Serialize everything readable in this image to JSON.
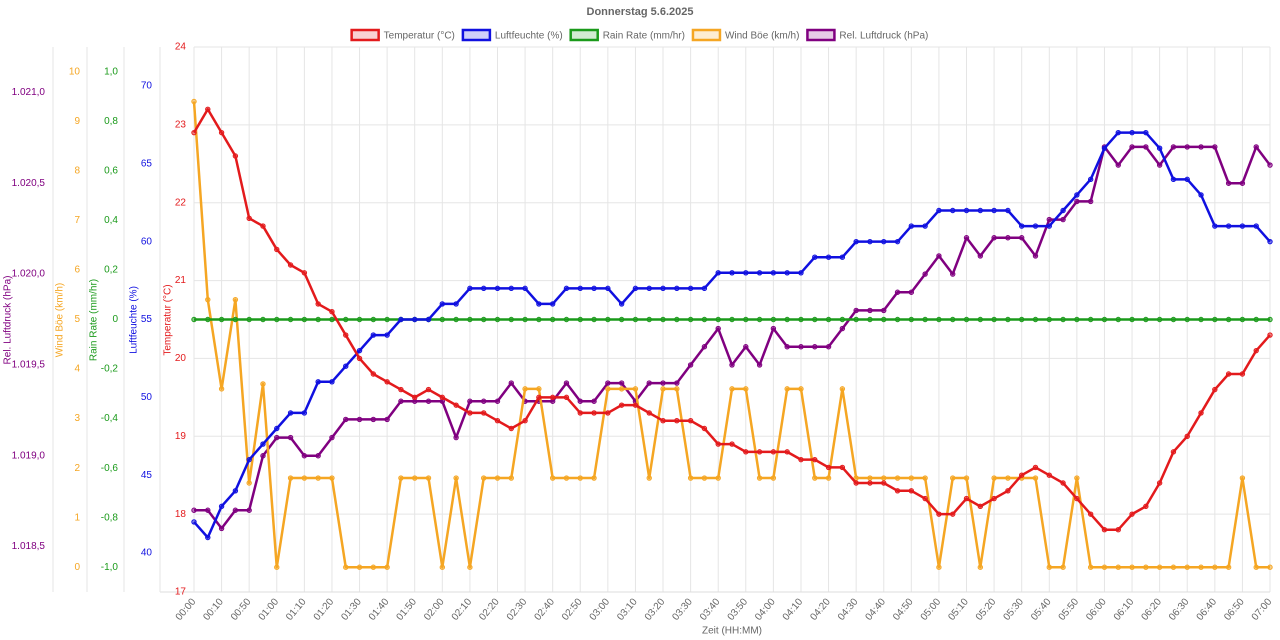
{
  "chart_data": {
    "type": "line",
    "title": "Donnerstag 5.6.2025",
    "x_label": "Zeit (HH:MM)",
    "grid": true,
    "categories": [
      "00:00",
      null,
      "00:10",
      null,
      "00:50",
      null,
      "01:00",
      null,
      "01:10",
      null,
      "01:20",
      null,
      "01:30",
      null,
      "01:40",
      null,
      "01:50",
      null,
      "02:00",
      null,
      "02:10",
      null,
      "02:20",
      null,
      "02:30",
      null,
      "02:40",
      null,
      "02:50",
      null,
      "03:00",
      null,
      "03:10",
      null,
      "03:20",
      null,
      "03:30",
      null,
      "03:40",
      null,
      "03:50",
      null,
      "04:00",
      null,
      "04:10",
      null,
      "04:20",
      null,
      "04:30",
      null,
      "04:40",
      null,
      "04:50",
      null,
      "05:00",
      null,
      "05:10",
      null,
      "05:20",
      null,
      "05:30",
      null,
      "05:40",
      null,
      "05:50",
      null,
      "06:00",
      null,
      "06:10",
      null,
      "06:20",
      null,
      "06:30",
      null,
      "06:40",
      null,
      "06:50",
      null,
      "07:00"
    ],
    "series": [
      {
        "name": "Temperatur (°C)",
        "color": "#e31a1c",
        "axis_title": "Temperatur (°C)",
        "ylim": [
          17,
          24
        ],
        "yticks": [
          17,
          18,
          19,
          20,
          21,
          22,
          23,
          24
        ],
        "values": [
          22.9,
          23.2,
          22.9,
          22.6,
          21.8,
          21.7,
          21.4,
          21.2,
          21.1,
          20.7,
          20.6,
          20.3,
          20.0,
          19.8,
          19.7,
          19.6,
          19.5,
          19.6,
          19.5,
          19.4,
          19.3,
          19.3,
          19.2,
          19.1,
          19.2,
          19.5,
          19.5,
          19.5,
          19.3,
          19.3,
          19.3,
          19.4,
          19.4,
          19.3,
          19.2,
          19.2,
          19.2,
          19.1,
          18.9,
          18.9,
          18.8,
          18.8,
          18.8,
          18.8,
          18.7,
          18.7,
          18.6,
          18.6,
          18.4,
          18.4,
          18.4,
          18.3,
          18.3,
          18.2,
          18.0,
          18.0,
          18.2,
          18.1,
          18.2,
          18.3,
          18.5,
          18.6,
          18.5,
          18.4,
          18.2,
          18.0,
          17.8,
          17.8,
          18.0,
          18.1,
          18.4,
          18.8,
          19.0,
          19.3,
          19.6,
          19.8,
          19.8,
          20.1,
          20.3
        ]
      },
      {
        "name": "Luftfeuchte (%)",
        "color": "#1010e0",
        "axis_title": "Luftfeuchte (%)",
        "ylim": [
          37.5,
          72.5
        ],
        "yticks": [
          40,
          45,
          50,
          55,
          60,
          65,
          70
        ],
        "values": [
          42,
          41,
          43,
          44,
          46,
          47,
          48,
          49,
          49,
          51,
          51,
          52,
          53,
          54,
          54,
          55,
          55,
          55,
          56,
          56,
          57,
          57,
          57,
          57,
          57,
          56,
          56,
          57,
          57,
          57,
          57,
          56,
          57,
          57,
          57,
          57,
          57,
          57,
          58,
          58,
          58,
          58,
          58,
          58,
          58,
          59,
          59,
          59,
          60,
          60,
          60,
          60,
          61,
          61,
          62,
          62,
          62,
          62,
          62,
          62,
          61,
          61,
          61,
          62,
          63,
          64,
          66,
          67,
          67,
          67,
          66,
          64,
          64,
          63,
          61,
          61,
          61,
          61,
          60
        ]
      },
      {
        "name": "Rain Rate (mm/hr)",
        "color": "#1a9a1a",
        "axis_title": "Rain Rate (mm/hr)",
        "ylim": [
          -1.1,
          1.1
        ],
        "yticks": [
          {
            "value": 1,
            "label": "1,0"
          },
          {
            "value": 0.8,
            "label": "0,8"
          },
          {
            "value": 0.6,
            "label": "0,6"
          },
          {
            "value": 0.4,
            "label": "0,4"
          },
          {
            "value": 0.2,
            "label": "0,2"
          },
          0,
          {
            "value": -0.2,
            "label": "-0,2"
          },
          {
            "value": -0.4,
            "label": "-0,4"
          },
          {
            "value": -0.6,
            "label": "-0,6"
          },
          {
            "value": -0.8,
            "label": "-0,8"
          },
          {
            "value": -1,
            "label": "-1,0"
          }
        ],
        "values": [
          0,
          0,
          0,
          0,
          0,
          0,
          0,
          0,
          0,
          0,
          0,
          0,
          0,
          0,
          0,
          0,
          0,
          0,
          0,
          0,
          0,
          0,
          0,
          0,
          0,
          0,
          0,
          0,
          0,
          0,
          0,
          0,
          0,
          0,
          0,
          0,
          0,
          0,
          0,
          0,
          0,
          0,
          0,
          0,
          0,
          0,
          0,
          0,
          0,
          0,
          0,
          0,
          0,
          0,
          0,
          0,
          0,
          0,
          0,
          0,
          0,
          0,
          0,
          0,
          0,
          0,
          0,
          0,
          0,
          0,
          0,
          0,
          0,
          0,
          0,
          0,
          0,
          0,
          0
        ]
      },
      {
        "name": "Wind Böe (km/h)",
        "color": "#f5a623",
        "axis_title": "Wind Böe (km/h)",
        "ylim": [
          -0.5,
          10.5
        ],
        "yticks": [
          0,
          1,
          2,
          3,
          4,
          5,
          6,
          7,
          8,
          9,
          10
        ],
        "values": [
          9.4,
          5.4,
          3.6,
          5.4,
          1.7,
          3.7,
          0,
          1.8,
          1.8,
          1.8,
          1.8,
          0,
          0,
          0,
          0,
          1.8,
          1.8,
          1.8,
          0,
          1.8,
          0,
          1.8,
          1.8,
          1.8,
          3.6,
          3.6,
          1.8,
          1.8,
          1.8,
          1.8,
          3.6,
          3.6,
          3.6,
          1.8,
          3.6,
          3.6,
          1.8,
          1.8,
          1.8,
          3.6,
          3.6,
          1.8,
          1.8,
          3.6,
          3.6,
          1.8,
          1.8,
          3.6,
          1.8,
          1.8,
          1.8,
          1.8,
          1.8,
          1.8,
          0,
          1.8,
          1.8,
          0,
          1.8,
          1.8,
          1.8,
          1.8,
          0,
          0,
          1.8,
          0,
          0,
          0,
          0,
          0,
          0,
          0,
          0,
          0,
          0,
          0,
          1.8,
          0,
          0
        ]
      },
      {
        "name": "Rel. Luftdruck (hPa)",
        "color": "#800080",
        "axis_title": "Rel. Luftdruck (hPa)",
        "ylim": [
          1018.25,
          1021.25
        ],
        "yticks": [
          {
            "value": 1018.5,
            "label": "1.018,5"
          },
          {
            "value": 1019.0,
            "label": "1.019,0"
          },
          {
            "value": 1019.5,
            "label": "1.019,5"
          },
          {
            "value": 1020.0,
            "label": "1.020,0"
          },
          {
            "value": 1020.5,
            "label": "1.020,5"
          },
          {
            "value": 1021.0,
            "label": "1.021,0"
          }
        ],
        "values": [
          1018.7,
          1018.7,
          1018.6,
          1018.7,
          1018.7,
          1019.0,
          1019.1,
          1019.1,
          1019.0,
          1019.0,
          1019.1,
          1019.2,
          1019.2,
          1019.2,
          1019.2,
          1019.3,
          1019.3,
          1019.3,
          1019.3,
          1019.1,
          1019.3,
          1019.3,
          1019.3,
          1019.4,
          1019.3,
          1019.3,
          1019.3,
          1019.4,
          1019.3,
          1019.3,
          1019.4,
          1019.4,
          1019.3,
          1019.4,
          1019.4,
          1019.4,
          1019.5,
          1019.6,
          1019.7,
          1019.5,
          1019.6,
          1019.5,
          1019.7,
          1019.6,
          1019.6,
          1019.6,
          1019.6,
          1019.7,
          1019.8,
          1019.8,
          1019.8,
          1019.9,
          1019.9,
          1020.0,
          1020.1,
          1020.0,
          1020.2,
          1020.1,
          1020.2,
          1020.2,
          1020.2,
          1020.1,
          1020.3,
          1020.3,
          1020.4,
          1020.4,
          1020.7,
          1020.6,
          1020.7,
          1020.7,
          1020.6,
          1020.7,
          1020.7,
          1020.7,
          1020.7,
          1020.5,
          1020.5,
          1020.7,
          1020.6
        ]
      }
    ]
  }
}
